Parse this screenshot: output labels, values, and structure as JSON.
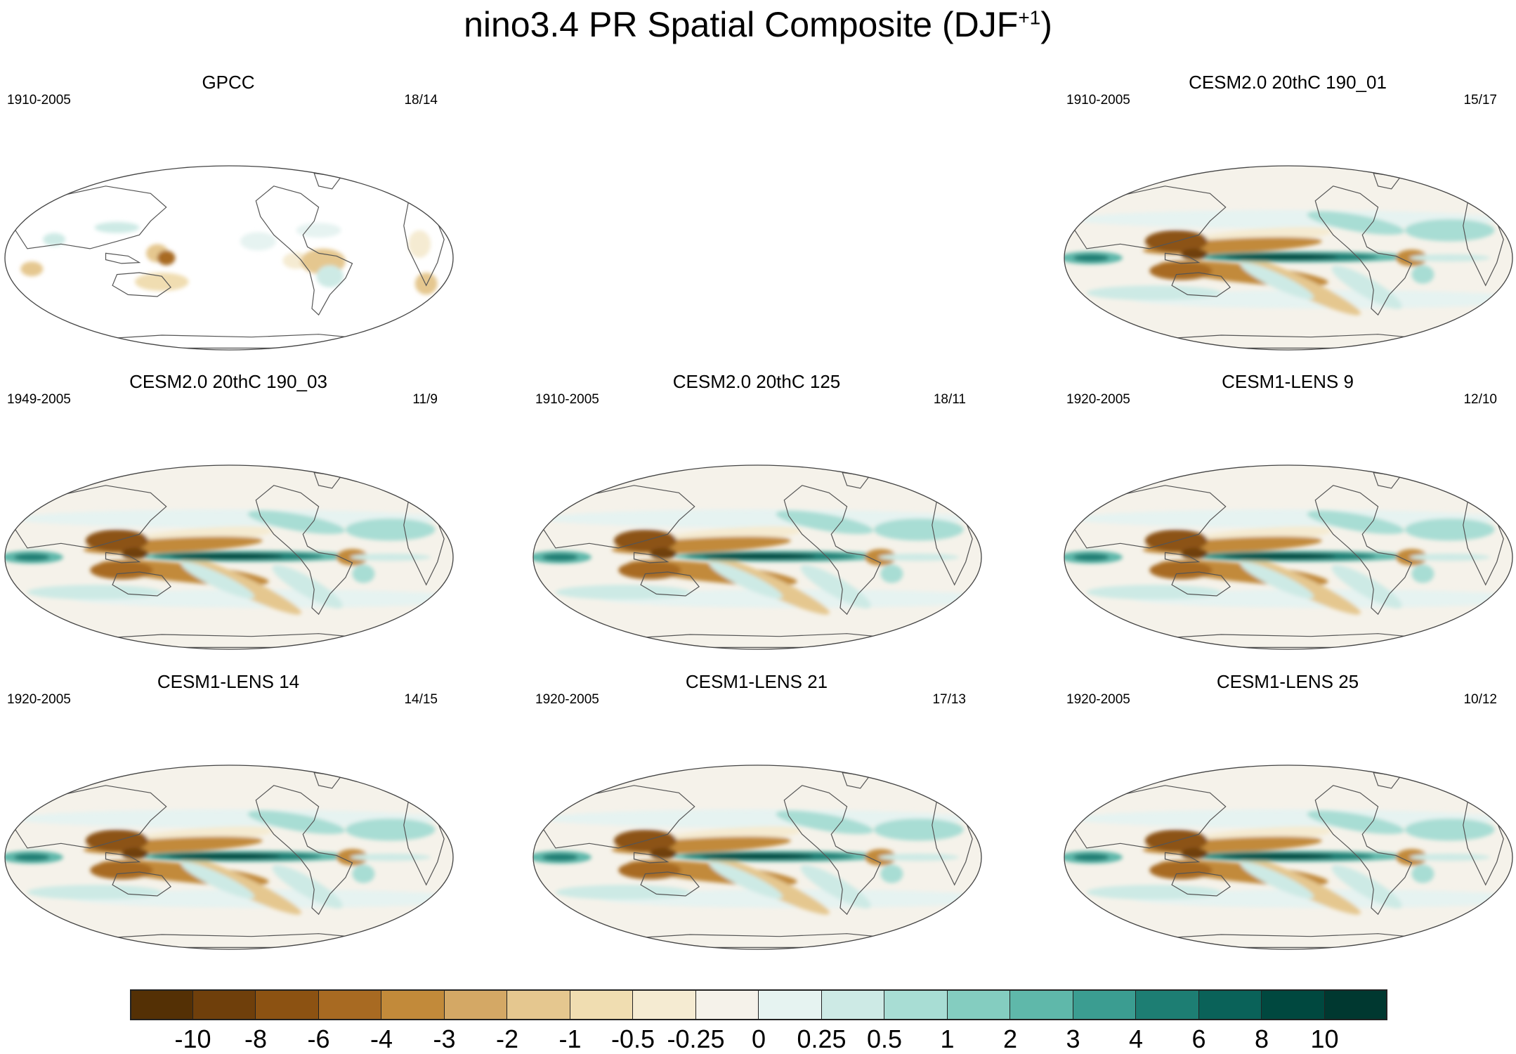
{
  "figure": {
    "title": "nino3.4 PR Spatial Composite (DJF",
    "title_sup": "+1",
    "title_close": ")"
  },
  "panels": [
    {
      "title": "GPCC",
      "years": "1910-2005",
      "count": "18/14",
      "kind": "obs"
    },
    {
      "title": "CESM2.0 20thC 190_01",
      "years": "1910-2005",
      "count": "15/17",
      "kind": "model"
    },
    {
      "title": "CESM2.0 20thC 190_03",
      "years": "1949-2005",
      "count": "11/9",
      "kind": "model"
    },
    {
      "title": "CESM2.0 20thC 125",
      "years": "1910-2005",
      "count": "18/11",
      "kind": "model"
    },
    {
      "title": "CESM1-LENS 9",
      "years": "1920-2005",
      "count": "12/10",
      "kind": "model"
    },
    {
      "title": "CESM1-LENS 14",
      "years": "1920-2005",
      "count": "14/15",
      "kind": "model"
    },
    {
      "title": "CESM1-LENS 21",
      "years": "1920-2005",
      "count": "17/13",
      "kind": "model"
    },
    {
      "title": "CESM1-LENS 25",
      "years": "1920-2005",
      "count": "10/12",
      "kind": "model"
    }
  ],
  "colorbar": {
    "labels": [
      "-10",
      "-8",
      "-6",
      "-4",
      "-3",
      "-2",
      "-1",
      "-0.5",
      "-0.25",
      "0",
      "0.25",
      "0.5",
      "1",
      "2",
      "3",
      "4",
      "6",
      "8",
      "10"
    ],
    "colors": [
      "#543005",
      "#6f3f0b",
      "#8c5212",
      "#a86a22",
      "#c28a3a",
      "#d4a865",
      "#e5c78f",
      "#f0ddb1",
      "#f5ebd2",
      "#f5f2ea",
      "#e6f3f1",
      "#cdeae5",
      "#a8ddd4",
      "#84cdc0",
      "#5fb8aa",
      "#3b9d91",
      "#1d7e73",
      "#0a6259",
      "#00483f",
      "#003830"
    ]
  }
}
